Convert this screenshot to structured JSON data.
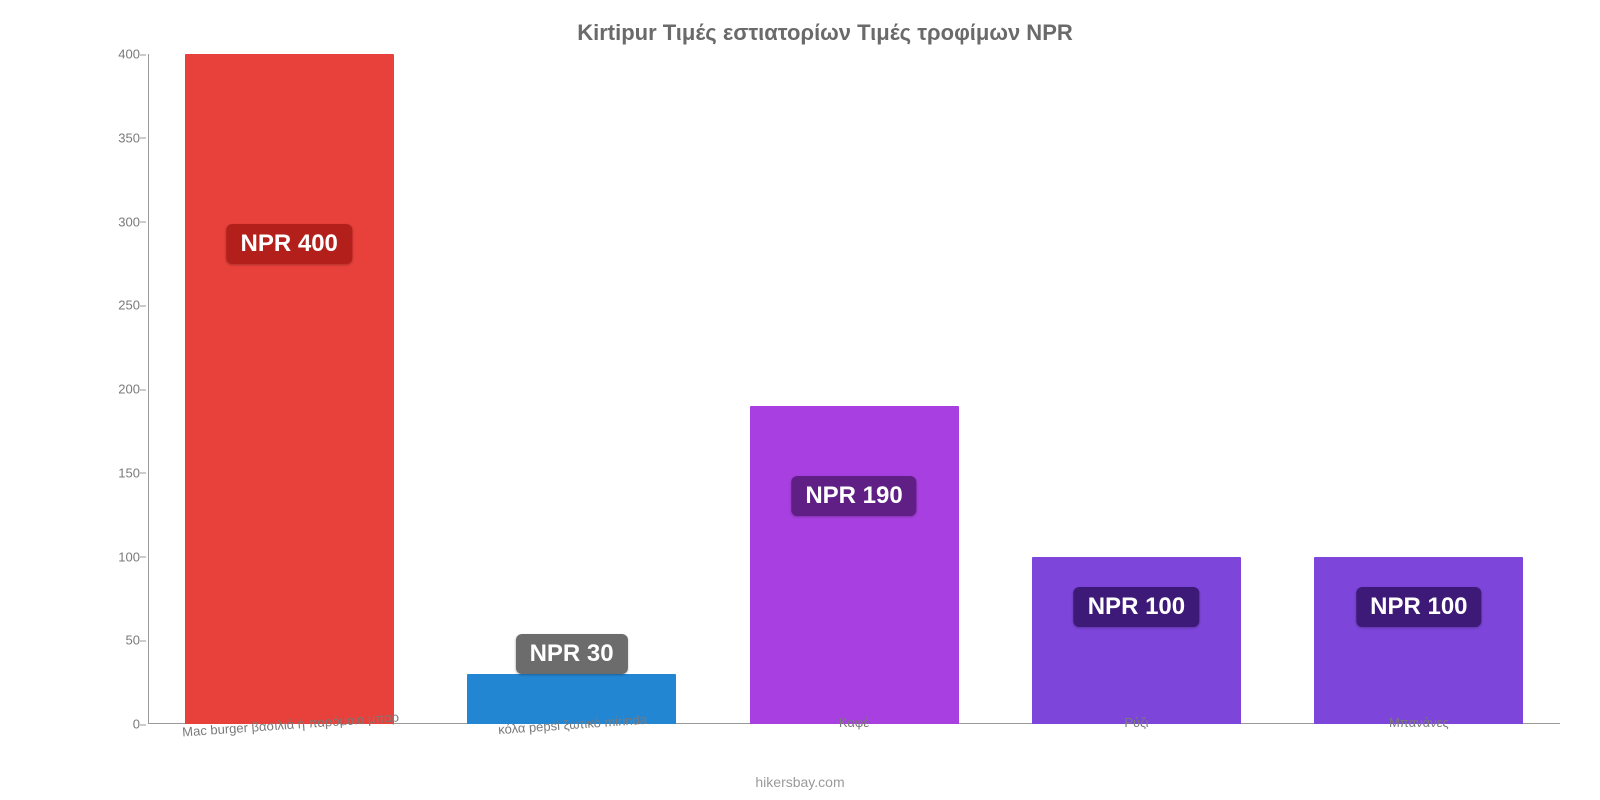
{
  "chart": {
    "type": "bar",
    "title": "Kirtipur Τιμές εστιατορίων Τιμές τροφίμων NPR",
    "title_fontsize": 22,
    "title_color": "#6a6a6a",
    "background_color": "#ffffff",
    "axis_color": "#9a9a9a",
    "tick_label_color": "#7a7a7a",
    "tick_label_fontsize": 13,
    "x_label_fontsize": 13,
    "x_label_rotation_deg": -4,
    "value_label_fontsize": 24,
    "value_label_text_color": "#ffffff",
    "value_label_radius": 6,
    "ylim": [
      0,
      400
    ],
    "ytick_step": 50,
    "yticks": [
      0,
      50,
      100,
      150,
      200,
      250,
      300,
      350,
      400
    ],
    "bar_width_pct": 74,
    "categories": [
      "Mac burger βασιλιά ή παρόμοιο μπαρ",
      "κόλα pepsi ξωτικό mirinda",
      "Καφέ",
      "Ρύζι",
      "Μπανάνες"
    ],
    "values": [
      400,
      30,
      190,
      100,
      100
    ],
    "value_labels": [
      "NPR 400",
      "NPR 30",
      "NPR 190",
      "NPR 100",
      "NPR 100"
    ],
    "bar_colors": [
      "#e8403a",
      "#2386d2",
      "#a83fe0",
      "#7d45d9",
      "#7d45d9"
    ],
    "label_bg_colors": [
      "#b3201b",
      "#6c6c6c",
      "#5f1f85",
      "#3d1a78",
      "#3d1a78"
    ],
    "label_y_offset": [
      170,
      -20,
      70,
      30,
      30
    ],
    "credit": "hikersbay.com",
    "credit_color": "#9a9a9a",
    "credit_fontsize": 14
  }
}
